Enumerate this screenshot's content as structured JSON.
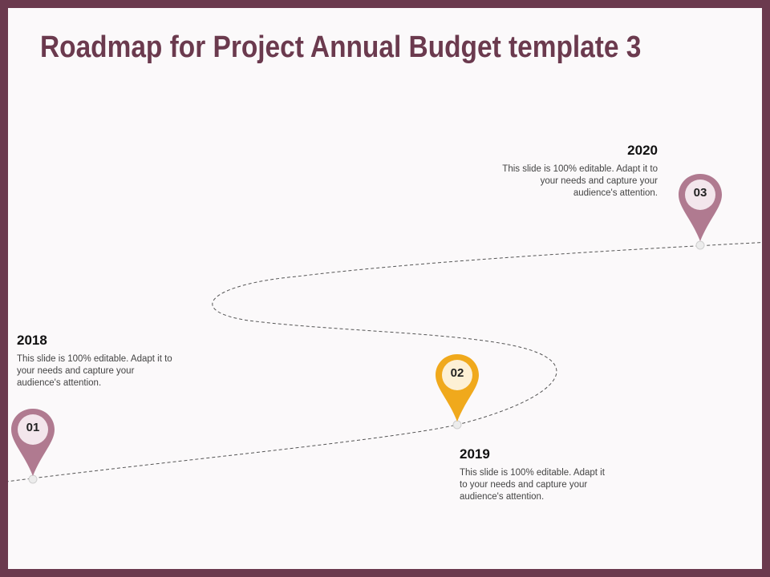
{
  "title": "Roadmap for Project Annual Budget template 3",
  "colors": {
    "frame": "#6b3a4e",
    "title": "#6b3a4e",
    "pin_mauve": "#b07a90",
    "pin_mauve_inner": "#f3e6ec",
    "pin_gold": "#f0a91c",
    "pin_gold_inner": "#fdf0d5",
    "path": "#555555"
  },
  "milestones": [
    {
      "number": "01",
      "year": "2018",
      "text": "This slide is 100% editable. Adapt it to your needs and capture your audience's attention.",
      "color": "mauve"
    },
    {
      "number": "02",
      "year": "2019",
      "text": "This slide is 100% editable. Adapt it to your needs and capture your audience's attention.",
      "color": "gold"
    },
    {
      "number": "03",
      "year": "2020",
      "text": "This slide is 100% editable. Adapt it to your needs and capture your audience's attention.",
      "color": "mauve"
    }
  ],
  "icons": {
    "pin": "map-pin-icon",
    "path": "dashed-road-path"
  }
}
